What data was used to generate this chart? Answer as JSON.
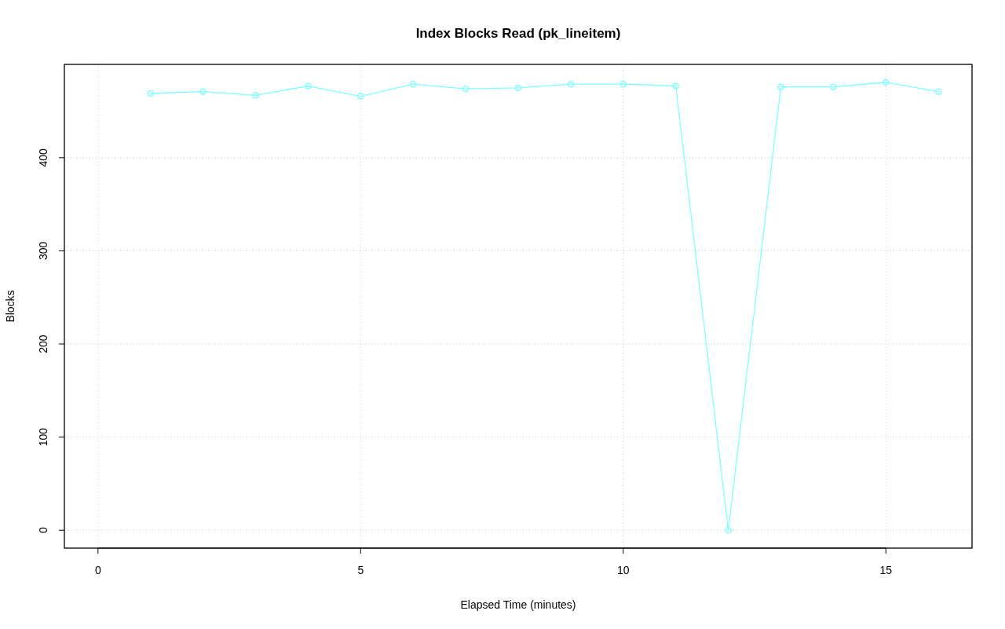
{
  "chart_data": {
    "type": "line",
    "title": "Index Blocks Read (pk_lineitem)",
    "xlabel": "Elapsed Time (minutes)",
    "ylabel": "Blocks",
    "x": [
      1,
      2,
      3,
      4,
      5,
      6,
      7,
      8,
      9,
      10,
      11,
      12,
      13,
      14,
      15,
      16
    ],
    "series": [
      {
        "color": "#7fffff",
        "values": [
          469,
          471,
          467,
          477,
          466,
          479,
          474,
          475,
          479,
          479,
          477,
          0,
          476,
          476,
          481,
          471
        ]
      }
    ],
    "xlim": [
      -0.64,
      16.64
    ],
    "ylim": [
      -19.2,
      500.2
    ],
    "xticks": [
      0,
      5,
      10,
      15
    ],
    "yticks": [
      0,
      100,
      200,
      300,
      400
    ],
    "grid": true,
    "marker": "circle",
    "line_style": "solid"
  }
}
